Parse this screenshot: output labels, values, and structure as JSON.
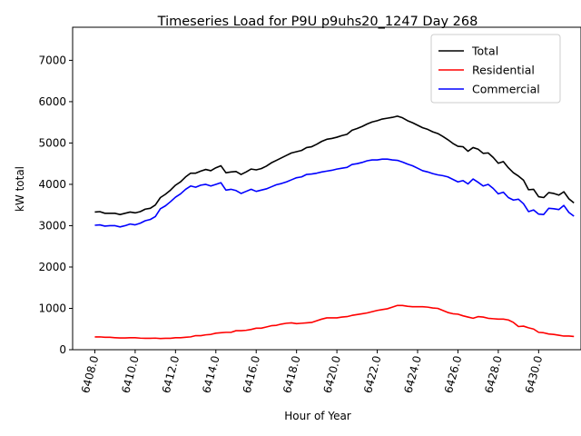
{
  "chart_data": {
    "type": "line",
    "title": "Timeseries Load for P9U p9uhs20_1247  Day 268",
    "xlabel": "Hour of Year",
    "ylabel": "kW total",
    "xlim": [
      6406.9,
      6432.1
    ],
    "ylim": [
      0,
      7800
    ],
    "xticks": [
      6408,
      6410,
      6412,
      6414,
      6416,
      6418,
      6420,
      6422,
      6424,
      6426,
      6428,
      6430
    ],
    "xtick_labels": [
      "6408.0",
      "6410.0",
      "6412.0",
      "6414.0",
      "6416.0",
      "6418.0",
      "6420.0",
      "6422.0",
      "6424.0",
      "6426.0",
      "6428.0",
      "6430.0"
    ],
    "yticks": [
      0,
      1000,
      2000,
      3000,
      4000,
      5000,
      6000,
      7000
    ],
    "ytick_labels": [
      "0",
      "1000",
      "2000",
      "3000",
      "4000",
      "5000",
      "6000",
      "7000"
    ],
    "grid": false,
    "legend_position": "top-right",
    "series": [
      {
        "name": "Total",
        "color": "#000000",
        "points": [
          [
            6408.0,
            3330
          ],
          [
            6408.25,
            3340
          ],
          [
            6408.5,
            3300
          ],
          [
            6408.75,
            3300
          ],
          [
            6409.0,
            3300
          ],
          [
            6409.25,
            3270
          ],
          [
            6409.5,
            3300
          ],
          [
            6409.75,
            3330
          ],
          [
            6410.0,
            3310
          ],
          [
            6410.25,
            3340
          ],
          [
            6410.5,
            3400
          ],
          [
            6410.75,
            3420
          ],
          [
            6411.0,
            3500
          ],
          [
            6411.25,
            3680
          ],
          [
            6411.5,
            3760
          ],
          [
            6411.75,
            3860
          ],
          [
            6412.0,
            3980
          ],
          [
            6412.25,
            4060
          ],
          [
            6412.5,
            4180
          ],
          [
            6412.75,
            4270
          ],
          [
            6413.0,
            4270
          ],
          [
            6413.25,
            4320
          ],
          [
            6413.5,
            4360
          ],
          [
            6413.75,
            4330
          ],
          [
            6414.0,
            4400
          ],
          [
            6414.25,
            4450
          ],
          [
            6414.5,
            4280
          ],
          [
            6414.75,
            4300
          ],
          [
            6415.0,
            4310
          ],
          [
            6415.25,
            4240
          ],
          [
            6415.5,
            4300
          ],
          [
            6415.75,
            4370
          ],
          [
            6416.0,
            4350
          ],
          [
            6416.25,
            4380
          ],
          [
            6416.5,
            4440
          ],
          [
            6416.75,
            4520
          ],
          [
            6417.0,
            4580
          ],
          [
            6417.25,
            4640
          ],
          [
            6417.5,
            4700
          ],
          [
            6417.75,
            4760
          ],
          [
            6418.0,
            4790
          ],
          [
            6418.25,
            4820
          ],
          [
            6418.5,
            4890
          ],
          [
            6418.75,
            4910
          ],
          [
            6419.0,
            4970
          ],
          [
            6419.25,
            5040
          ],
          [
            6419.5,
            5090
          ],
          [
            6419.75,
            5110
          ],
          [
            6420.0,
            5140
          ],
          [
            6420.25,
            5180
          ],
          [
            6420.5,
            5210
          ],
          [
            6420.75,
            5310
          ],
          [
            6421.0,
            5350
          ],
          [
            6421.25,
            5400
          ],
          [
            6421.5,
            5460
          ],
          [
            6421.75,
            5510
          ],
          [
            6422.0,
            5540
          ],
          [
            6422.25,
            5580
          ],
          [
            6422.5,
            5600
          ],
          [
            6422.75,
            5620
          ],
          [
            6423.0,
            5650
          ],
          [
            6423.25,
            5610
          ],
          [
            6423.5,
            5540
          ],
          [
            6423.75,
            5490
          ],
          [
            6424.0,
            5430
          ],
          [
            6424.25,
            5370
          ],
          [
            6424.5,
            5330
          ],
          [
            6424.75,
            5270
          ],
          [
            6425.0,
            5230
          ],
          [
            6425.25,
            5160
          ],
          [
            6425.5,
            5080
          ],
          [
            6425.75,
            4990
          ],
          [
            6426.0,
            4920
          ],
          [
            6426.25,
            4910
          ],
          [
            6426.5,
            4800
          ],
          [
            6426.75,
            4890
          ],
          [
            6427.0,
            4850
          ],
          [
            6427.25,
            4750
          ],
          [
            6427.5,
            4760
          ],
          [
            6427.75,
            4650
          ],
          [
            6428.0,
            4510
          ],
          [
            6428.25,
            4550
          ],
          [
            6428.5,
            4400
          ],
          [
            6428.75,
            4280
          ],
          [
            6429.0,
            4200
          ],
          [
            6429.25,
            4100
          ],
          [
            6429.5,
            3870
          ],
          [
            6429.75,
            3880
          ],
          [
            6430.0,
            3700
          ],
          [
            6430.25,
            3680
          ],
          [
            6430.5,
            3800
          ],
          [
            6430.75,
            3780
          ],
          [
            6431.0,
            3740
          ],
          [
            6431.25,
            3820
          ],
          [
            6431.5,
            3650
          ],
          [
            6431.75,
            3550
          ]
        ]
      },
      {
        "name": "Residential",
        "color": "#ff0000",
        "points": [
          [
            6408.0,
            310
          ],
          [
            6408.25,
            310
          ],
          [
            6408.5,
            300
          ],
          [
            6408.75,
            300
          ],
          [
            6409.0,
            290
          ],
          [
            6409.25,
            285
          ],
          [
            6409.5,
            285
          ],
          [
            6409.75,
            290
          ],
          [
            6410.0,
            290
          ],
          [
            6410.25,
            280
          ],
          [
            6410.5,
            275
          ],
          [
            6410.75,
            275
          ],
          [
            6411.0,
            280
          ],
          [
            6411.25,
            270
          ],
          [
            6411.5,
            275
          ],
          [
            6411.75,
            275
          ],
          [
            6412.0,
            290
          ],
          [
            6412.25,
            290
          ],
          [
            6412.5,
            300
          ],
          [
            6412.75,
            310
          ],
          [
            6413.0,
            340
          ],
          [
            6413.25,
            340
          ],
          [
            6413.5,
            360
          ],
          [
            6413.75,
            370
          ],
          [
            6414.0,
            400
          ],
          [
            6414.25,
            410
          ],
          [
            6414.5,
            420
          ],
          [
            6414.75,
            420
          ],
          [
            6415.0,
            460
          ],
          [
            6415.25,
            460
          ],
          [
            6415.5,
            470
          ],
          [
            6415.75,
            490
          ],
          [
            6416.0,
            520
          ],
          [
            6416.25,
            520
          ],
          [
            6416.5,
            550
          ],
          [
            6416.75,
            580
          ],
          [
            6417.0,
            590
          ],
          [
            6417.25,
            620
          ],
          [
            6417.5,
            640
          ],
          [
            6417.75,
            650
          ],
          [
            6418.0,
            630
          ],
          [
            6418.25,
            640
          ],
          [
            6418.5,
            650
          ],
          [
            6418.75,
            660
          ],
          [
            6419.0,
            700
          ],
          [
            6419.25,
            740
          ],
          [
            6419.5,
            770
          ],
          [
            6419.75,
            770
          ],
          [
            6420.0,
            770
          ],
          [
            6420.25,
            790
          ],
          [
            6420.5,
            800
          ],
          [
            6420.75,
            830
          ],
          [
            6421.0,
            850
          ],
          [
            6421.25,
            870
          ],
          [
            6421.5,
            890
          ],
          [
            6421.75,
            920
          ],
          [
            6422.0,
            950
          ],
          [
            6422.25,
            970
          ],
          [
            6422.5,
            990
          ],
          [
            6422.75,
            1030
          ],
          [
            6423.0,
            1070
          ],
          [
            6423.25,
            1070
          ],
          [
            6423.5,
            1050
          ],
          [
            6423.75,
            1040
          ],
          [
            6424.0,
            1040
          ],
          [
            6424.25,
            1040
          ],
          [
            6424.5,
            1030
          ],
          [
            6424.75,
            1010
          ],
          [
            6425.0,
            1000
          ],
          [
            6425.25,
            950
          ],
          [
            6425.5,
            900
          ],
          [
            6425.75,
            870
          ],
          [
            6426.0,
            860
          ],
          [
            6426.25,
            820
          ],
          [
            6426.5,
            790
          ],
          [
            6426.75,
            760
          ],
          [
            6427.0,
            800
          ],
          [
            6427.25,
            790
          ],
          [
            6427.5,
            760
          ],
          [
            6427.75,
            750
          ],
          [
            6428.0,
            740
          ],
          [
            6428.25,
            740
          ],
          [
            6428.5,
            720
          ],
          [
            6428.75,
            660
          ],
          [
            6429.0,
            560
          ],
          [
            6429.25,
            570
          ],
          [
            6429.5,
            530
          ],
          [
            6429.75,
            500
          ],
          [
            6430.0,
            420
          ],
          [
            6430.25,
            410
          ],
          [
            6430.5,
            380
          ],
          [
            6430.75,
            370
          ],
          [
            6431.0,
            350
          ],
          [
            6431.25,
            330
          ],
          [
            6431.5,
            330
          ],
          [
            6431.75,
            320
          ]
        ]
      },
      {
        "name": "Commercial",
        "color": "#0000ff",
        "points": [
          [
            6408.0,
            3010
          ],
          [
            6408.25,
            3020
          ],
          [
            6408.5,
            2990
          ],
          [
            6408.75,
            3000
          ],
          [
            6409.0,
            3000
          ],
          [
            6409.25,
            2970
          ],
          [
            6409.5,
            3000
          ],
          [
            6409.75,
            3040
          ],
          [
            6410.0,
            3020
          ],
          [
            6410.25,
            3060
          ],
          [
            6410.5,
            3120
          ],
          [
            6410.75,
            3150
          ],
          [
            6411.0,
            3220
          ],
          [
            6411.25,
            3410
          ],
          [
            6411.5,
            3480
          ],
          [
            6411.75,
            3580
          ],
          [
            6412.0,
            3690
          ],
          [
            6412.25,
            3770
          ],
          [
            6412.5,
            3880
          ],
          [
            6412.75,
            3960
          ],
          [
            6413.0,
            3930
          ],
          [
            6413.25,
            3980
          ],
          [
            6413.5,
            4000
          ],
          [
            6413.75,
            3960
          ],
          [
            6414.0,
            4000
          ],
          [
            6414.25,
            4040
          ],
          [
            6414.5,
            3860
          ],
          [
            6414.75,
            3880
          ],
          [
            6415.0,
            3850
          ],
          [
            6415.25,
            3780
          ],
          [
            6415.5,
            3830
          ],
          [
            6415.75,
            3880
          ],
          [
            6416.0,
            3830
          ],
          [
            6416.25,
            3860
          ],
          [
            6416.5,
            3890
          ],
          [
            6416.75,
            3940
          ],
          [
            6417.0,
            3990
          ],
          [
            6417.25,
            4020
          ],
          [
            6417.5,
            4060
          ],
          [
            6417.75,
            4110
          ],
          [
            6418.0,
            4160
          ],
          [
            6418.25,
            4180
          ],
          [
            6418.5,
            4240
          ],
          [
            6418.75,
            4250
          ],
          [
            6419.0,
            4270
          ],
          [
            6419.25,
            4300
          ],
          [
            6419.5,
            4320
          ],
          [
            6419.75,
            4340
          ],
          [
            6420.0,
            4370
          ],
          [
            6420.25,
            4390
          ],
          [
            6420.5,
            4410
          ],
          [
            6420.75,
            4480
          ],
          [
            6421.0,
            4500
          ],
          [
            6421.25,
            4530
          ],
          [
            6421.5,
            4570
          ],
          [
            6421.75,
            4590
          ],
          [
            6422.0,
            4590
          ],
          [
            6422.25,
            4610
          ],
          [
            6422.5,
            4610
          ],
          [
            6422.75,
            4590
          ],
          [
            6423.0,
            4580
          ],
          [
            6423.25,
            4540
          ],
          [
            6423.5,
            4490
          ],
          [
            6423.75,
            4450
          ],
          [
            6424.0,
            4390
          ],
          [
            6424.25,
            4330
          ],
          [
            6424.5,
            4300
          ],
          [
            6424.75,
            4260
          ],
          [
            6425.0,
            4230
          ],
          [
            6425.25,
            4210
          ],
          [
            6425.5,
            4180
          ],
          [
            6425.75,
            4120
          ],
          [
            6426.0,
            4060
          ],
          [
            6426.25,
            4090
          ],
          [
            6426.5,
            4010
          ],
          [
            6426.75,
            4130
          ],
          [
            6427.0,
            4050
          ],
          [
            6427.25,
            3960
          ],
          [
            6427.5,
            4000
          ],
          [
            6427.75,
            3900
          ],
          [
            6428.0,
            3770
          ],
          [
            6428.25,
            3810
          ],
          [
            6428.5,
            3680
          ],
          [
            6428.75,
            3620
          ],
          [
            6429.0,
            3640
          ],
          [
            6429.25,
            3530
          ],
          [
            6429.5,
            3340
          ],
          [
            6429.75,
            3380
          ],
          [
            6430.0,
            3280
          ],
          [
            6430.25,
            3270
          ],
          [
            6430.5,
            3420
          ],
          [
            6430.75,
            3410
          ],
          [
            6431.0,
            3390
          ],
          [
            6431.25,
            3490
          ],
          [
            6431.5,
            3320
          ],
          [
            6431.75,
            3230
          ]
        ]
      }
    ]
  }
}
